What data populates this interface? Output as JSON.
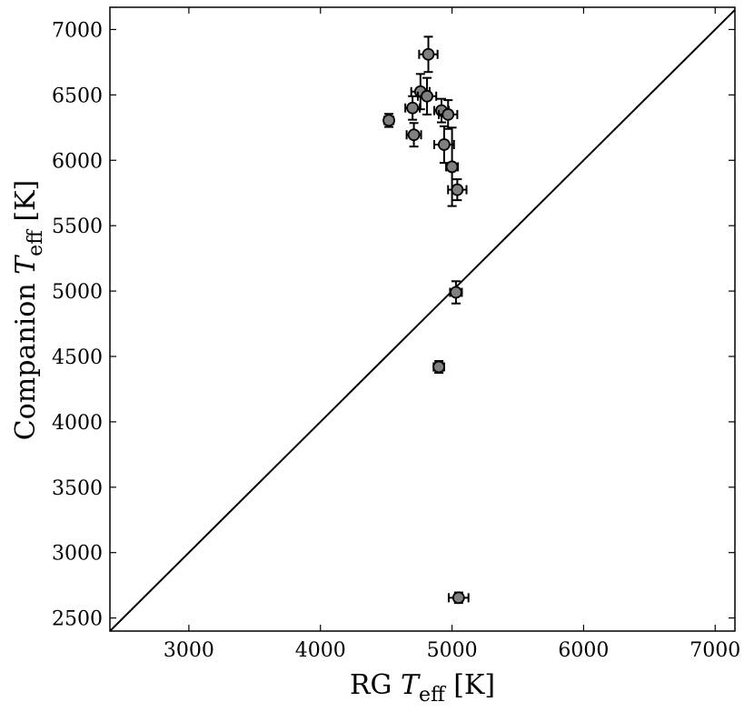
{
  "chart_data": {
    "type": "scatter",
    "title": "",
    "xlabel": {
      "prefix": "RG ",
      "var": "T",
      "sub": "eff",
      "suffix": " [K]"
    },
    "ylabel": {
      "prefix": "Companion ",
      "var": "T",
      "sub": "eff",
      "suffix": " [K]"
    },
    "xlim": [
      2400,
      7150
    ],
    "ylim": [
      2400,
      7170
    ],
    "xticks": [
      3000,
      4000,
      5000,
      6000,
      7000
    ],
    "yticks": [
      2500,
      3000,
      3500,
      4000,
      4500,
      5000,
      5500,
      6000,
      6500,
      7000
    ],
    "reference_line": "y = x",
    "marker_color": "#808080",
    "grid": false,
    "points": [
      {
        "x": 4820,
        "y": 6810,
        "xerr": 70,
        "yerr": 135
      },
      {
        "x": 4760,
        "y": 6525,
        "xerr": 70,
        "yerr": 135
      },
      {
        "x": 4810,
        "y": 6490,
        "xerr": 70,
        "yerr": 140
      },
      {
        "x": 4700,
        "y": 6400,
        "xerr": 55,
        "yerr": 90
      },
      {
        "x": 4920,
        "y": 6380,
        "xerr": 55,
        "yerr": 90
      },
      {
        "x": 4970,
        "y": 6350,
        "xerr": 70,
        "yerr": 110
      },
      {
        "x": 4520,
        "y": 6305,
        "xerr": 35,
        "yerr": 50
      },
      {
        "x": 4710,
        "y": 6195,
        "xerr": 55,
        "yerr": 90
      },
      {
        "x": 4940,
        "y": 6120,
        "xerr": 75,
        "yerr": 140
      },
      {
        "x": 5000,
        "y": 5950,
        "xerr": 45,
        "yerr": 300
      },
      {
        "x": 5040,
        "y": 5775,
        "xerr": 70,
        "yerr": 80
      },
      {
        "x": 5030,
        "y": 4990,
        "xerr": 45,
        "yerr": 85
      },
      {
        "x": 4900,
        "y": 4420,
        "xerr": 40,
        "yerr": 45
      },
      {
        "x": 5050,
        "y": 2655,
        "xerr": 75,
        "yerr": 40
      }
    ]
  }
}
